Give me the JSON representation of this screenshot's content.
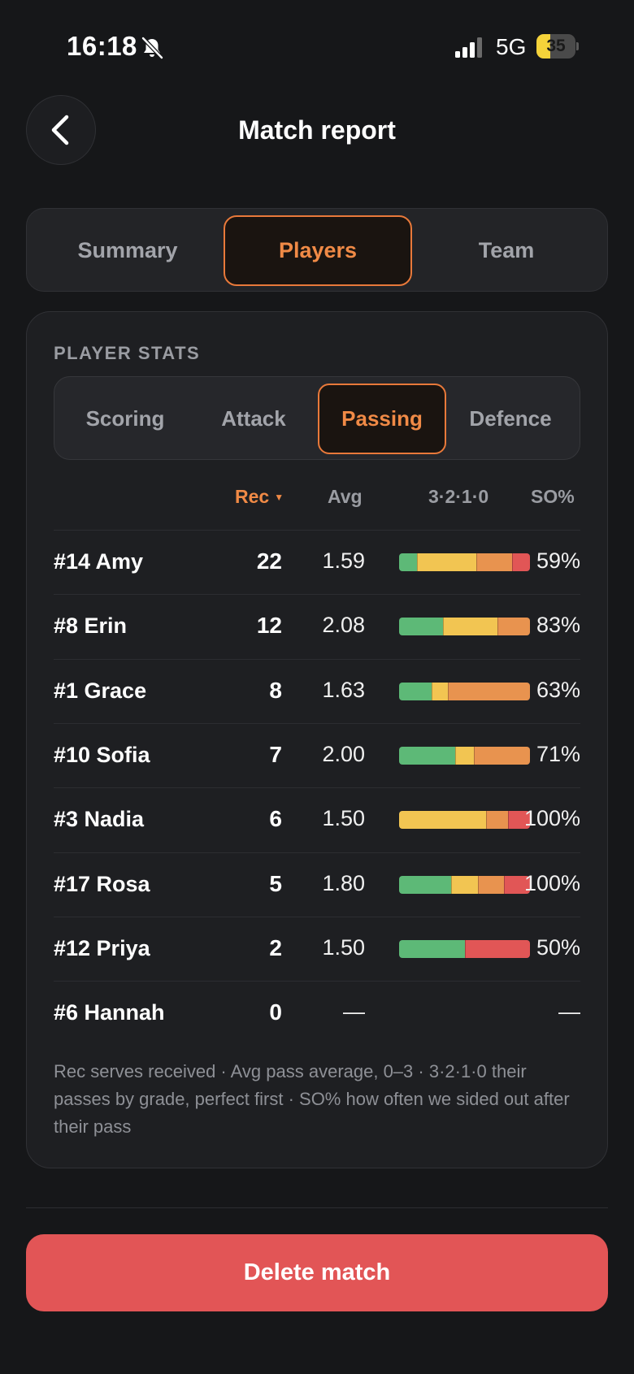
{
  "status_bar": {
    "time": "16:18",
    "network": "5G",
    "battery_percent": 35,
    "battery_label": "35",
    "silent_icon": "bell-slash-icon",
    "signal_icon": "cellular-signal-icon"
  },
  "header": {
    "back_icon": "chevron-left-icon",
    "title": "Match report"
  },
  "tabs": [
    {
      "label": "Summary",
      "active": false
    },
    {
      "label": "Players",
      "active": true
    },
    {
      "label": "Team",
      "active": false
    }
  ],
  "player_stats": {
    "section_label": "PLAYER STATS",
    "subtabs": [
      {
        "label": "Scoring",
        "active": false
      },
      {
        "label": "Attack",
        "active": false
      },
      {
        "label": "Passing",
        "active": true
      },
      {
        "label": "Defence",
        "active": false
      }
    ],
    "columns": {
      "rec": "Rec",
      "sort_indicator": "▼",
      "avg": "Avg",
      "grades": "3·2·1·0",
      "so": "SO%"
    },
    "rows": [
      {
        "player": "#14 Amy",
        "rec": "22",
        "avg": "1.59",
        "grades": [
          3,
          10,
          6,
          3
        ],
        "so": "59%"
      },
      {
        "player": "#8 Erin",
        "rec": "12",
        "avg": "2.08",
        "grades": [
          4,
          5,
          3,
          0
        ],
        "so": "83%"
      },
      {
        "player": "#1 Grace",
        "rec": "8",
        "avg": "1.63",
        "grades": [
          2,
          1,
          5,
          0
        ],
        "so": "63%"
      },
      {
        "player": "#10 Sofia",
        "rec": "7",
        "avg": "2.00",
        "grades": [
          3,
          1,
          3,
          0
        ],
        "so": "71%"
      },
      {
        "player": "#3 Nadia",
        "rec": "6",
        "avg": "1.50",
        "grades": [
          0,
          4,
          1,
          1
        ],
        "so": "100%"
      },
      {
        "player": "#17 Rosa",
        "rec": "5",
        "avg": "1.80",
        "grades": [
          2,
          1,
          1,
          1
        ],
        "so": "100%"
      },
      {
        "player": "#12 Priya",
        "rec": "2",
        "avg": "1.50",
        "grades": [
          1,
          0,
          0,
          1
        ],
        "so": "50%"
      },
      {
        "player": "#6 Hannah",
        "rec": "0",
        "avg": "—",
        "grades": [],
        "so": "—"
      }
    ],
    "grade_colors": {
      "3": "#5db977",
      "2": "#f2c552",
      "1": "#e8934f",
      "0": "#e15656"
    },
    "footnote": "Rec serves received · Avg pass average, 0–3 · 3·2·1·0 their passes by grade, perfect first · SO% how often we sided out after their pass"
  },
  "delete_button": {
    "label": "Delete match",
    "color": "#e25556"
  },
  "accent_color": "#f08a46"
}
